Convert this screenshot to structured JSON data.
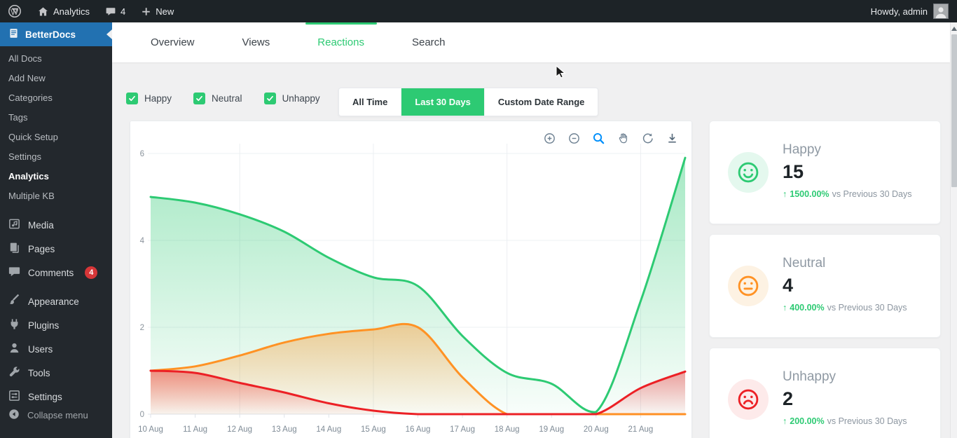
{
  "admin_bar": {
    "site_label": "Analytics",
    "comment_count": "4",
    "new_label": "New",
    "howdy": "Howdy, admin"
  },
  "sidebar": {
    "betterdocs_label": "BetterDocs",
    "submenu": [
      {
        "label": "All Docs"
      },
      {
        "label": "Add New"
      },
      {
        "label": "Categories"
      },
      {
        "label": "Tags"
      },
      {
        "label": "Quick Setup"
      },
      {
        "label": "Settings"
      },
      {
        "label": "Analytics",
        "current": true
      },
      {
        "label": "Multiple KB"
      }
    ],
    "menu": [
      {
        "label": "Media"
      },
      {
        "label": "Pages"
      },
      {
        "label": "Comments",
        "badge": "4"
      },
      {
        "label": "Appearance"
      },
      {
        "label": "Plugins"
      },
      {
        "label": "Users"
      },
      {
        "label": "Tools"
      },
      {
        "label": "Settings"
      }
    ],
    "comments_badge": "4",
    "collapse_label": "Collapse menu"
  },
  "tabs": [
    {
      "label": "Overview"
    },
    {
      "label": "Views"
    },
    {
      "label": "Reactions",
      "active": true
    },
    {
      "label": "Search"
    }
  ],
  "filters": {
    "legend": [
      {
        "label": "Happy",
        "checked": true,
        "color": "#2dca73"
      },
      {
        "label": "Neutral",
        "checked": true,
        "color": "#ff9224"
      },
      {
        "label": "Unhappy",
        "checked": true,
        "color": "#ec2025"
      }
    ],
    "ranges": [
      {
        "label": "All Time"
      },
      {
        "label": "Last 30 Days",
        "active": true
      },
      {
        "label": "Custom Date Range"
      }
    ]
  },
  "chart_data": {
    "type": "area",
    "x_tick_labels": [
      "10 Aug",
      "11 Aug",
      "12 Aug",
      "13 Aug",
      "14 Aug",
      "15 Aug",
      "16 Aug",
      "17 Aug",
      "18 Aug",
      "19 Aug",
      "20 Aug",
      "21 Aug"
    ],
    "note": "smooth spline area chart; series have one extra point at the right clipped edge beyond the 21 Aug tick",
    "series": [
      {
        "name": "Happy",
        "color": "#2dca73",
        "values": [
          5,
          4.87,
          4.6,
          4.2,
          3.6,
          3.15,
          2.95,
          1.8,
          0.95,
          0.7,
          0.05,
          2.6,
          5.9
        ]
      },
      {
        "name": "Neutral",
        "color": "#ff9224",
        "values": [
          1,
          1.1,
          1.35,
          1.65,
          1.85,
          1.95,
          2.0,
          0.85,
          0,
          0,
          0,
          0,
          0
        ]
      },
      {
        "name": "Unhappy",
        "color": "#ec2025",
        "values": [
          1,
          0.95,
          0.72,
          0.5,
          0.25,
          0.08,
          0,
          0,
          0,
          0,
          0,
          0.6,
          0.98
        ]
      }
    ],
    "ylim": [
      0,
      6
    ],
    "yticks": [
      0,
      2,
      4,
      6
    ],
    "grid_vertical_indices": [
      2,
      5,
      8,
      11
    ],
    "legend_position": "none",
    "toolbar": [
      "zoom-in",
      "zoom-out",
      "selection-zoom",
      "pan",
      "reset-zoom",
      "download"
    ],
    "active_tool": "selection-zoom"
  },
  "cards": [
    {
      "title": "Happy",
      "value": "15",
      "delta_arrow": "↑",
      "delta": "1500.00%",
      "compare": "vs Previous 30 Days",
      "color": "#2dca73"
    },
    {
      "title": "Neutral",
      "value": "4",
      "delta_arrow": "↑",
      "delta": "400.00%",
      "compare": "vs Previous 30 Days",
      "color": "#ff9224"
    },
    {
      "title": "Unhappy",
      "value": "2",
      "delta_arrow": "↑",
      "delta": "200.00%",
      "compare": "vs Previous 30 Days",
      "color": "#ec2025"
    }
  ],
  "colors": {
    "accent_green": "#2dca73",
    "orange": "#ff9224",
    "red": "#ec2025",
    "wp_blue": "#2271b1",
    "badge_red": "#d63638",
    "admin_dark": "#1d2327",
    "sidebar_dark": "#23282d",
    "page_bg": "#f0f0f1",
    "selection_tool_blue": "#008ffb"
  }
}
